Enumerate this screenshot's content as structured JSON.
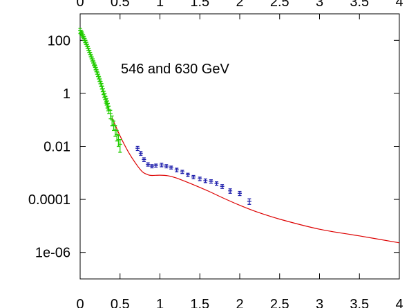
{
  "chart_data": {
    "type": "scatter",
    "title": "",
    "xlabel": "",
    "ylabel": "",
    "xlim": [
      0,
      4
    ],
    "ylim": [
      1e-07,
      1000
    ],
    "yscale": "log",
    "grid": false,
    "x_ticks": [
      0,
      0.5,
      1,
      1.5,
      2,
      2.5,
      3,
      3.5,
      4
    ],
    "x_tick_labels": [
      "0",
      "0.5",
      "1",
      "1.5",
      "2",
      "2.5",
      "3",
      "3.5",
      "4"
    ],
    "y_ticks": [
      100,
      1,
      0.01,
      0.0001,
      1e-06
    ],
    "y_tick_labels": [
      "100",
      "1",
      "0.01",
      "0.0001",
      "1e-06"
    ],
    "annotations": [
      {
        "text": "546 and 630 GeV"
      }
    ],
    "colors": {
      "green_series": "#22cc00",
      "blue_series": "#1a1aaa",
      "model_curve": "#dd0000"
    },
    "series": [
      {
        "kind": "points",
        "color": "#22cc00",
        "points": [
          [
            0.0,
            230,
            50
          ],
          [
            0.01,
            200,
            40
          ],
          [
            0.02,
            185,
            35
          ],
          [
            0.03,
            160,
            30
          ],
          [
            0.04,
            140,
            25
          ],
          [
            0.05,
            120,
            22
          ],
          [
            0.06,
            100,
            18
          ],
          [
            0.07,
            85,
            15
          ],
          [
            0.08,
            72,
            12
          ],
          [
            0.09,
            60,
            10
          ],
          [
            0.1,
            50,
            8
          ],
          [
            0.11,
            42,
            7
          ],
          [
            0.12,
            35,
            6
          ],
          [
            0.13,
            29,
            5
          ],
          [
            0.14,
            24,
            4
          ],
          [
            0.15,
            20,
            3.5
          ],
          [
            0.16,
            17,
            3
          ],
          [
            0.17,
            14,
            2.5
          ],
          [
            0.18,
            12,
            2
          ],
          [
            0.19,
            9.5,
            1.8
          ],
          [
            0.2,
            8,
            1.5
          ],
          [
            0.21,
            6.5,
            1.2
          ],
          [
            0.22,
            5.3,
            1.0
          ],
          [
            0.23,
            4.4,
            0.9
          ],
          [
            0.24,
            3.5,
            0.7
          ],
          [
            0.25,
            2.9,
            0.6
          ],
          [
            0.26,
            2.3,
            0.5
          ],
          [
            0.27,
            1.9,
            0.45
          ],
          [
            0.28,
            1.5,
            0.35
          ],
          [
            0.29,
            1.2,
            0.3
          ],
          [
            0.3,
            0.95,
            0.25
          ],
          [
            0.31,
            0.78,
            0.2
          ],
          [
            0.32,
            0.6,
            0.17
          ],
          [
            0.33,
            0.5,
            0.14
          ],
          [
            0.34,
            0.4,
            0.12
          ],
          [
            0.35,
            0.32,
            0.1
          ],
          [
            0.36,
            0.25,
            0.08
          ],
          [
            0.38,
            0.17,
            0.06
          ],
          [
            0.4,
            0.1,
            0.04
          ],
          [
            0.42,
            0.065,
            0.025
          ],
          [
            0.44,
            0.042,
            0.018
          ],
          [
            0.46,
            0.028,
            0.012
          ],
          [
            0.48,
            0.018,
            0.008
          ],
          [
            0.5,
            0.012,
            0.006
          ]
        ]
      },
      {
        "kind": "points",
        "color": "#1a1aaa",
        "points": [
          [
            0.72,
            0.0085,
            0.0015
          ],
          [
            0.76,
            0.0055,
            0.0009
          ],
          [
            0.8,
            0.0032,
            0.0005
          ],
          [
            0.85,
            0.0021,
            0.0003
          ],
          [
            0.9,
            0.0018,
            0.00025
          ],
          [
            0.95,
            0.0019,
            0.00025
          ],
          [
            1.02,
            0.002,
            0.0003
          ],
          [
            1.08,
            0.0018,
            0.00025
          ],
          [
            1.14,
            0.0016,
            0.0002
          ],
          [
            1.21,
            0.0013,
            0.0002
          ],
          [
            1.28,
            0.0011,
            0.00015
          ],
          [
            1.35,
            0.00085,
            0.00012
          ],
          [
            1.42,
            0.0007,
            0.0001
          ],
          [
            1.5,
            0.0006,
            9e-05
          ],
          [
            1.57,
            0.00051,
            8e-05
          ],
          [
            1.64,
            0.00048,
            7e-05
          ],
          [
            1.71,
            0.0004,
            6e-05
          ],
          [
            1.78,
            0.00031,
            5e-05
          ],
          [
            1.88,
            0.00021,
            4e-05
          ],
          [
            2.0,
            0.00017,
            3e-05
          ],
          [
            2.12,
            8.5e-05,
            2e-05
          ]
        ]
      },
      {
        "kind": "curve",
        "color": "#dd0000",
        "x": [
          0.4,
          0.5,
          0.6,
          0.7,
          0.78,
          0.85,
          0.9,
          1.0,
          1.1,
          1.2,
          1.3,
          1.4,
          1.6,
          1.8,
          2.0,
          2.2,
          2.5,
          3.0,
          3.5,
          4.0
        ],
        "y": [
          0.12,
          0.025,
          0.0065,
          0.0022,
          0.0011,
          0.00085,
          0.0008,
          0.00082,
          0.00078,
          0.00065,
          0.0005,
          0.00038,
          0.00021,
          0.00011,
          6e-05,
          3.5e-05,
          1.8e-05,
          7.5e-06,
          4.2e-06,
          2.3e-06
        ]
      }
    ]
  }
}
